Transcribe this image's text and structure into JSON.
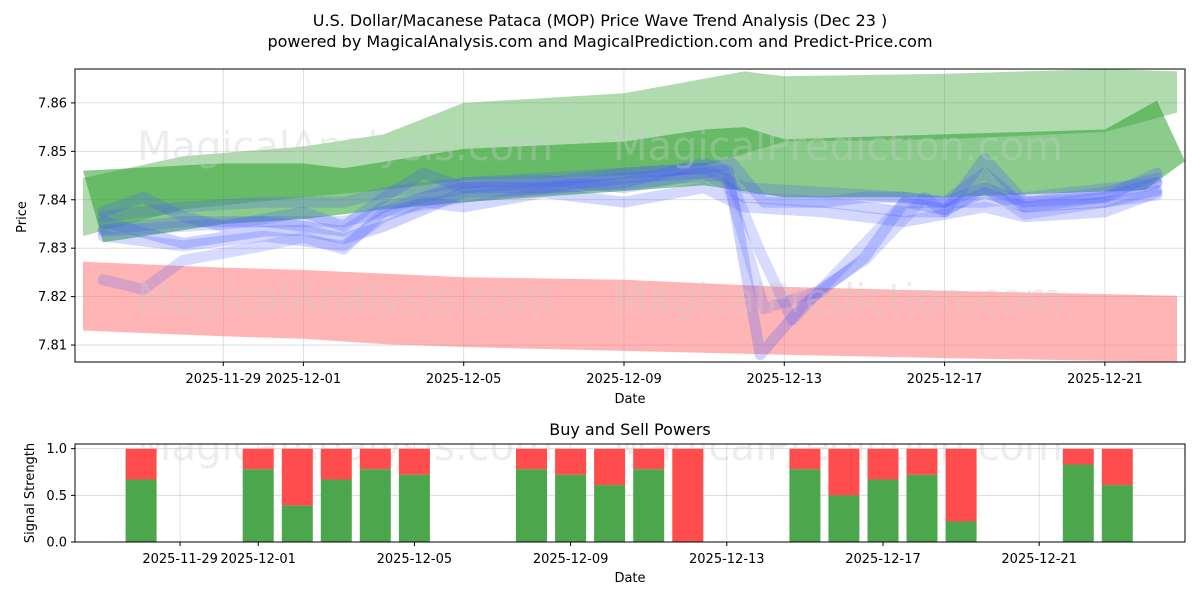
{
  "title_line1": "U.S. Dollar/Macanese Pataca (MOP) Price Wave Trend Analysis (Dec 23 )",
  "title_line2": "powered by MagicalAnalysis.com and MagicalPrediction.com and Predict-Price.com",
  "watermarks": [
    "MagicalAnalysis.com",
    "MagicalPrediction.com"
  ],
  "colors": {
    "green": "#2ca02c",
    "blue": "#4a5cff",
    "red": "#ff6b6b",
    "buy": "#4ca64c",
    "sell": "#ff4c4c"
  },
  "chart_data": [
    {
      "type": "area",
      "title": "",
      "xlabel": "Date",
      "ylabel": "Price",
      "ylim": [
        7.8065,
        7.867
      ],
      "xlim": [
        -1.7,
        26.0
      ],
      "x_origin": "2025-11-27",
      "x_ticks": [
        {
          "day": 2,
          "label": "2025-11-29"
        },
        {
          "day": 4,
          "label": "2025-12-01"
        },
        {
          "day": 8,
          "label": "2025-12-05"
        },
        {
          "day": 12,
          "label": "2025-12-09"
        },
        {
          "day": 16,
          "label": "2025-12-13"
        },
        {
          "day": 20,
          "label": "2025-12-17"
        },
        {
          "day": 24,
          "label": "2025-12-21"
        }
      ],
      "y_ticks": [
        "7.81",
        "7.82",
        "7.83",
        "7.84",
        "7.85",
        "7.86"
      ],
      "grid": true,
      "bands": [
        {
          "name": "green-upper",
          "color": "green",
          "opacity": 0.38,
          "upper": [
            [
              -1.5,
              7.8445
            ],
            [
              1,
              7.849
            ],
            [
              4,
              7.851
            ],
            [
              6,
              7.8535
            ],
            [
              8,
              7.86
            ],
            [
              12,
              7.862
            ],
            [
              14,
              7.865
            ],
            [
              15,
              7.8665
            ],
            [
              16,
              7.8655
            ],
            [
              20,
              7.866
            ],
            [
              24,
              7.867
            ],
            [
              25.8,
              7.8665
            ]
          ],
          "lower": [
            [
              -1.5,
              7.8325
            ],
            [
              1,
              7.838
            ],
            [
              4,
              7.8405
            ],
            [
              6,
              7.842
            ],
            [
              8,
              7.844
            ],
            [
              12,
              7.845
            ],
            [
              14,
              7.847
            ],
            [
              16,
              7.852
            ],
            [
              20,
              7.8525
            ],
            [
              24,
              7.854
            ],
            [
              25.8,
              7.858
            ]
          ]
        },
        {
          "name": "green-lower",
          "color": "green",
          "opacity": 0.55,
          "upper": [
            [
              -1.5,
              7.846
            ],
            [
              2,
              7.8475
            ],
            [
              4,
              7.8475
            ],
            [
              5,
              7.8465
            ],
            [
              8,
              7.8505
            ],
            [
              12,
              7.852
            ],
            [
              14,
              7.8545
            ],
            [
              15,
              7.855
            ],
            [
              16,
              7.8525
            ],
            [
              24,
              7.8545
            ],
            [
              25.3,
              7.8605
            ],
            [
              26,
              7.848
            ]
          ],
          "lower": [
            [
              -1,
              7.8312
            ],
            [
              2,
              7.835
            ],
            [
              4,
              7.836
            ],
            [
              6,
              7.838
            ],
            [
              8,
              7.8395
            ],
            [
              12,
              7.8418
            ],
            [
              14,
              7.843
            ],
            [
              16,
              7.8405
            ],
            [
              20,
              7.8405
            ],
            [
              25,
              7.842
            ]
          ]
        },
        {
          "name": "red-band",
          "color": "red",
          "opacity": 0.5,
          "upper": [
            [
              -1.5,
              7.8272
            ],
            [
              2,
              7.826
            ],
            [
              4,
              7.8255
            ],
            [
              8,
              7.824
            ],
            [
              12,
              7.8235
            ],
            [
              16,
              7.822
            ],
            [
              20,
              7.8212
            ],
            [
              25.8,
              7.8202
            ]
          ],
          "lower": [
            [
              -1.5,
              7.813
            ],
            [
              2,
              7.8118
            ],
            [
              4,
              7.8113
            ],
            [
              6,
              7.8102
            ],
            [
              8,
              7.8096
            ],
            [
              12,
              7.8088
            ],
            [
              16,
              7.808
            ],
            [
              20,
              7.8073
            ],
            [
              25.8,
              7.8065
            ]
          ]
        }
      ],
      "wave_lines": [
        {
          "name": "wave-1",
          "opacity": 0.28,
          "width": 11,
          "points": [
            [
              -1,
              7.8355
            ],
            [
              1,
              7.831
            ],
            [
              3,
              7.8335
            ],
            [
              4,
              7.8337
            ],
            [
              5,
              7.832
            ],
            [
              6,
              7.8345
            ],
            [
              8,
              7.8415
            ],
            [
              10,
              7.8422
            ],
            [
              12,
              7.8435
            ],
            [
              14,
              7.8475
            ],
            [
              14.6,
              7.846
            ],
            [
              15.4,
              7.808
            ],
            [
              16.5,
              7.8185
            ],
            [
              18,
              7.828
            ],
            [
              19,
              7.8395
            ],
            [
              20,
              7.838
            ],
            [
              21,
              7.8415
            ],
            [
              22,
              7.8385
            ],
            [
              24,
              7.8395
            ],
            [
              25.3,
              7.842
            ]
          ]
        },
        {
          "name": "wave-2",
          "opacity": 0.22,
          "width": 11,
          "points": [
            [
              -1,
              7.8335
            ],
            [
              1,
              7.8345
            ],
            [
              3,
              7.8355
            ],
            [
              5,
              7.8355
            ],
            [
              6,
              7.8375
            ],
            [
              8,
              7.8435
            ],
            [
              10,
              7.844
            ],
            [
              12,
              7.8425
            ],
            [
              14,
              7.8455
            ],
            [
              14.5,
              7.846
            ],
            [
              15.5,
              7.8175
            ],
            [
              16.8,
              7.821
            ],
            [
              18,
              7.8275
            ],
            [
              19.5,
              7.8405
            ],
            [
              20,
              7.8375
            ],
            [
              21,
              7.8425
            ],
            [
              22,
              7.837
            ],
            [
              24,
              7.8395
            ],
            [
              25.3,
              7.841
            ]
          ]
        },
        {
          "name": "wave-3",
          "opacity": 0.22,
          "width": 11,
          "points": [
            [
              -1,
              7.8235
            ],
            [
              0,
              7.8215
            ],
            [
              1,
              7.8275
            ],
            [
              3,
              7.8305
            ],
            [
              4,
              7.8322
            ],
            [
              5,
              7.8298
            ],
            [
              6,
              7.8375
            ],
            [
              8,
              7.8405
            ],
            [
              10,
              7.8425
            ],
            [
              12,
              7.8432
            ],
            [
              13.5,
              7.8445
            ],
            [
              14.6,
              7.8452
            ],
            [
              15.4,
              7.8292
            ],
            [
              16.2,
              7.8152
            ],
            [
              16.8,
              7.8205
            ],
            [
              19,
              7.8395
            ],
            [
              21,
              7.8395
            ],
            [
              25.3,
              7.8435
            ]
          ]
        },
        {
          "name": "wave-4",
          "opacity": 0.26,
          "width": 11,
          "points": [
            [
              -1,
              7.8375
            ],
            [
              0,
              7.8405
            ],
            [
              1,
              7.8365
            ],
            [
              2,
              7.8345
            ],
            [
              4,
              7.8375
            ],
            [
              5,
              7.8345
            ],
            [
              6,
              7.8405
            ],
            [
              7,
              7.8455
            ],
            [
              8,
              7.8425
            ],
            [
              10,
              7.8435
            ],
            [
              12,
              7.8455
            ],
            [
              14,
              7.8465
            ],
            [
              14.7,
              7.8475
            ],
            [
              15.5,
              7.8395
            ],
            [
              17,
              7.8395
            ],
            [
              18,
              7.8405
            ],
            [
              19,
              7.8405
            ],
            [
              20,
              7.8395
            ],
            [
              21,
              7.8455
            ],
            [
              22,
              7.8385
            ],
            [
              24,
              7.8405
            ],
            [
              25.3,
              7.8435
            ]
          ]
        },
        {
          "name": "wave-5",
          "opacity": 0.26,
          "width": 11,
          "points": [
            [
              -1,
              7.8338
            ],
            [
              1,
              7.8355
            ],
            [
              3,
              7.8355
            ],
            [
              5,
              7.8335
            ],
            [
              6,
              7.8385
            ],
            [
              8,
              7.8425
            ],
            [
              10,
              7.8425
            ],
            [
              12,
              7.8445
            ],
            [
              14,
              7.8455
            ],
            [
              15,
              7.8405
            ],
            [
              17,
              7.8395
            ],
            [
              19,
              7.8375
            ],
            [
              20,
              7.8375
            ],
            [
              21,
              7.8485
            ],
            [
              22,
              7.8395
            ],
            [
              24,
              7.8405
            ],
            [
              25.3,
              7.8455
            ]
          ]
        },
        {
          "name": "wave-6",
          "opacity": 0.24,
          "width": 11,
          "points": [
            [
              -1,
              7.8325
            ],
            [
              1,
              7.8305
            ],
            [
              3,
              7.8325
            ],
            [
              5,
              7.8305
            ],
            [
              6,
              7.8365
            ],
            [
              7,
              7.8395
            ],
            [
              8,
              7.8385
            ],
            [
              10,
              7.8415
            ],
            [
              12,
              7.8395
            ],
            [
              14,
              7.8425
            ],
            [
              15,
              7.8385
            ],
            [
              17,
              7.8375
            ],
            [
              19,
              7.8355
            ],
            [
              21,
              7.8385
            ],
            [
              22,
              7.8365
            ],
            [
              24,
              7.8375
            ],
            [
              25.3,
              7.8415
            ]
          ]
        },
        {
          "name": "wave-7",
          "opacity": 0.24,
          "width": 11,
          "points": [
            [
              -1,
              7.8365
            ],
            [
              1,
              7.8385
            ],
            [
              3,
              7.8395
            ],
            [
              5,
              7.8395
            ],
            [
              6,
              7.8415
            ],
            [
              8,
              7.8435
            ],
            [
              10,
              7.8445
            ],
            [
              12,
              7.8455
            ],
            [
              14,
              7.8465
            ],
            [
              15,
              7.8425
            ],
            [
              17,
              7.8415
            ],
            [
              19,
              7.8405
            ],
            [
              20,
              7.8395
            ],
            [
              21,
              7.8425
            ],
            [
              22,
              7.8395
            ],
            [
              24,
              7.8415
            ],
            [
              25.3,
              7.8445
            ]
          ]
        }
      ]
    },
    {
      "type": "bar",
      "title": "Buy and Sell Powers",
      "xlabel": "Date",
      "ylabel": "Signal Strength",
      "ylim": [
        0,
        1.05
      ],
      "y_ticks": [
        "0.0",
        "0.5",
        "1.0"
      ],
      "x_origin": "2025-11-27",
      "x_ticks": [
        {
          "day": 2,
          "label": "2025-11-29"
        },
        {
          "day": 4,
          "label": "2025-12-01"
        },
        {
          "day": 8,
          "label": "2025-12-05"
        },
        {
          "day": 12,
          "label": "2025-12-09"
        },
        {
          "day": 16,
          "label": "2025-12-13"
        },
        {
          "day": 20,
          "label": "2025-12-17"
        },
        {
          "day": 24,
          "label": "2025-12-21"
        }
      ],
      "grid": true,
      "series": [
        {
          "name": "Buy",
          "color": "buy"
        },
        {
          "name": "Sell",
          "color": "sell"
        }
      ],
      "bars": [
        {
          "day": 1,
          "buy": 0.67
        },
        {
          "day": 4,
          "buy": 0.78
        },
        {
          "day": 5,
          "buy": 0.39
        },
        {
          "day": 6,
          "buy": 0.67
        },
        {
          "day": 7,
          "buy": 0.78
        },
        {
          "day": 8,
          "buy": 0.72
        },
        {
          "day": 11,
          "buy": 0.78
        },
        {
          "day": 12,
          "buy": 0.72
        },
        {
          "day": 13,
          "buy": 0.61
        },
        {
          "day": 14,
          "buy": 0.78
        },
        {
          "day": 15,
          "buy": 0.0
        },
        {
          "day": 18,
          "buy": 0.78
        },
        {
          "day": 19,
          "buy": 0.5
        },
        {
          "day": 20,
          "buy": 0.67
        },
        {
          "day": 21,
          "buy": 0.72
        },
        {
          "day": 22,
          "buy": 0.22
        },
        {
          "day": 25,
          "buy": 0.83
        },
        {
          "day": 26,
          "buy": 0.61
        }
      ]
    }
  ]
}
